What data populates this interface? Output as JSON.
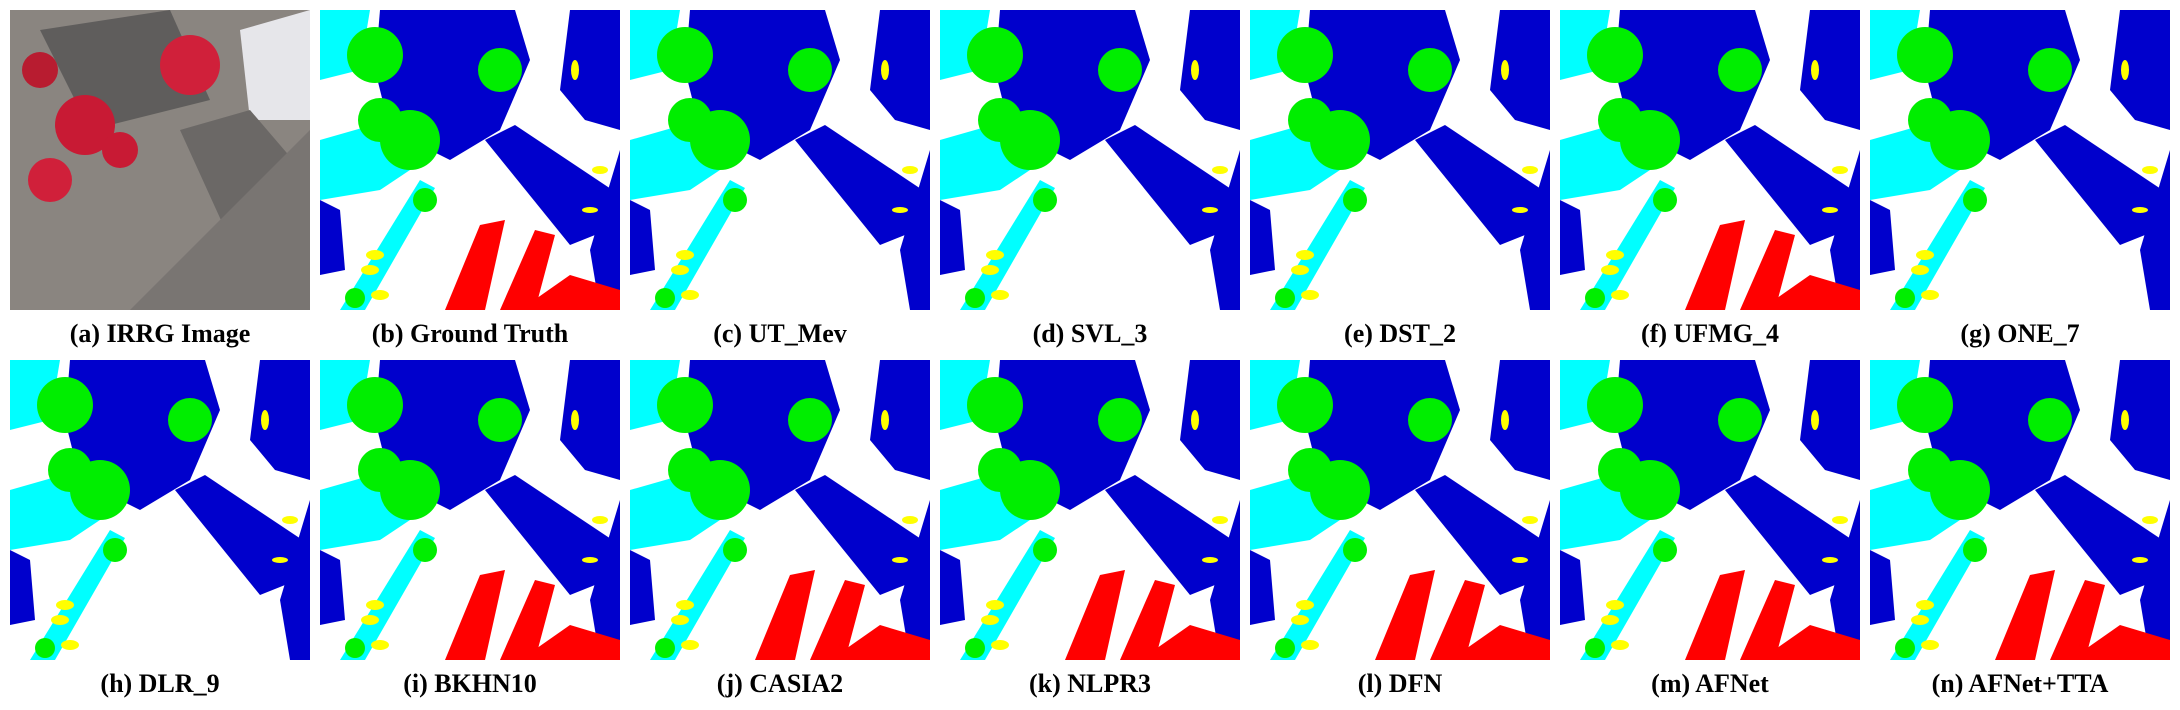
{
  "figure": {
    "captions": [
      "(a) IRRG Image",
      "(b) Ground Truth",
      "(c) UT_Mev",
      "(d) SVL_3",
      "(e) DST_2",
      "(f) UFMG_4",
      "(g) ONE_7",
      "(h) DLR_9",
      "(i) BKHN10",
      "(j) CASIA2",
      "(k) NLPR3",
      "(l) DFN",
      "(m) AFNet",
      "(n) AFNet+TTA"
    ]
  }
}
